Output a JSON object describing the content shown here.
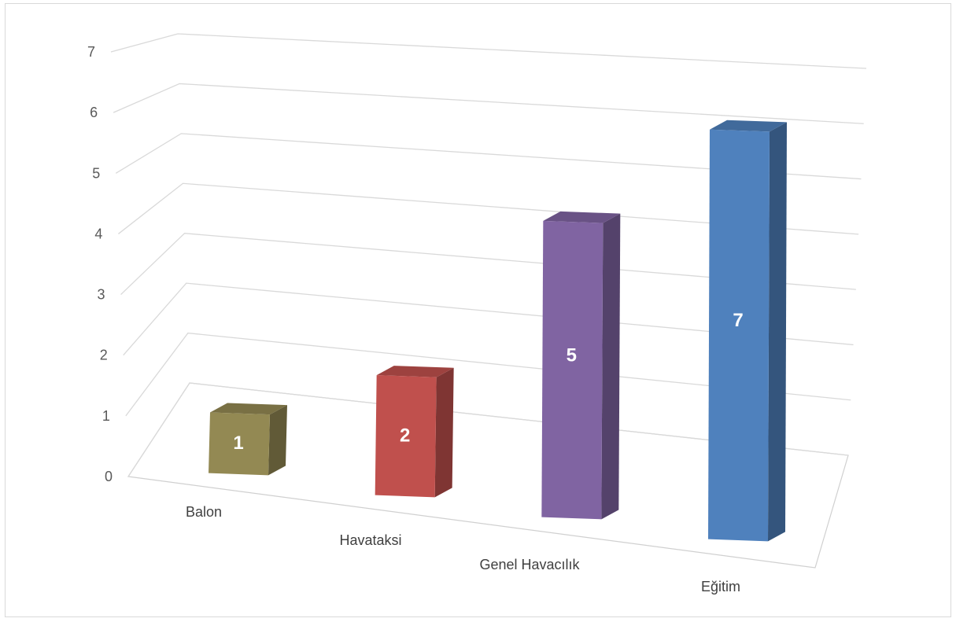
{
  "chart_data": {
    "type": "bar",
    "categories": [
      "Balon",
      "Havataksi",
      "Genel Havacılık",
      "Eğitim"
    ],
    "values": [
      1,
      2,
      5,
      7
    ],
    "data_labels": [
      "1",
      "2",
      "5",
      "7"
    ],
    "colors": [
      "#938953",
      "#C0504D",
      "#8064A2",
      "#4F81BD"
    ],
    "y_ticks": [
      "0",
      "1",
      "2",
      "3",
      "4",
      "5",
      "6",
      "7"
    ],
    "ylim": [
      0,
      7
    ],
    "grid": true,
    "legend": "none",
    "title": "",
    "xlabel": "",
    "ylabel": ""
  }
}
